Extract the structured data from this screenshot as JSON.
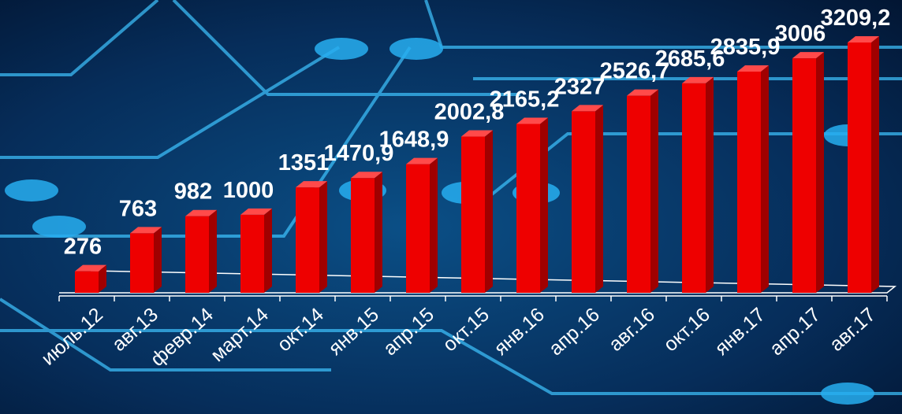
{
  "chart_data": {
    "type": "bar",
    "categories": [
      "июль.12",
      "авг.13",
      "февр.14",
      "март.14",
      "окт.14",
      "янв.15",
      "апр.15",
      "окт.15",
      "янв.16",
      "апр.16",
      "авг.16",
      "окт.16",
      "янв.17",
      "апр.17",
      "авг.17"
    ],
    "values": [
      276,
      763,
      982,
      1000,
      1351,
      1470.9,
      1648.9,
      2002.8,
      2165.2,
      2327,
      2526.7,
      2685.6,
      2835.9,
      3006,
      3209.2
    ],
    "value_labels": [
      "276",
      "763",
      "982",
      "1000",
      "1351",
      "1470,9",
      "1648,9",
      "2002,8",
      "2165,2",
      "2327",
      "2526,7",
      "2685,6",
      "2835,9",
      "3006",
      "3209,2"
    ],
    "color": "#ee0000"
  }
}
